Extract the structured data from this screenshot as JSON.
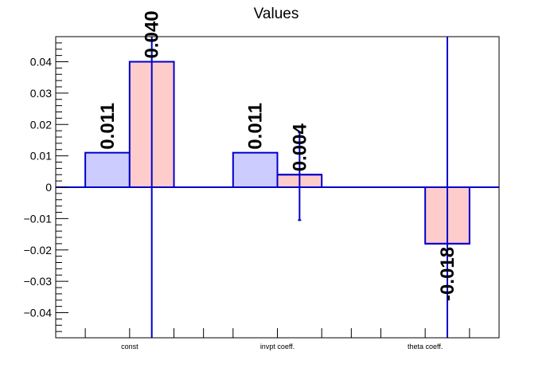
{
  "colors": {
    "series_a_fill": "#ccccff",
    "series_b_fill": "#ffcccc",
    "bar_stroke": "#0000cc",
    "error_bar": "#0000cc",
    "axis": "#000000",
    "zero_line": "#0000cc"
  },
  "chart_data": {
    "type": "bar",
    "title": "Values",
    "xlabel": "",
    "ylabel": "",
    "categories": [
      "const",
      "invpt coeff.",
      "theta coeff."
    ],
    "ylim": [
      -0.048,
      0.048
    ],
    "yticks": [
      -0.04,
      -0.03,
      -0.02,
      -0.01,
      0,
      0.01,
      0.02,
      0.03,
      0.04
    ],
    "ytick_labels": [
      "−0.04",
      "−0.03",
      "−0.02",
      "−0.01",
      "0",
      "0.01",
      "0.02",
      "0.03",
      "0.04"
    ],
    "grid": false,
    "legend": "none",
    "series": [
      {
        "values": [
          0.011,
          0.011,
          null
        ],
        "labels": [
          "0.011",
          "0.011",
          ""
        ],
        "errors": [
          null,
          null,
          null
        ],
        "fill": "#ccccff"
      },
      {
        "values": [
          0.04,
          0.004,
          -0.018
        ],
        "labels": [
          "0.040",
          "0.004",
          "-0.018"
        ],
        "errors": [
          [
            -0.048,
            0.048
          ],
          [
            -0.0105,
            0.0175
          ],
          [
            -0.048,
            0.048
          ]
        ],
        "fill": "#ffcccc"
      }
    ]
  }
}
